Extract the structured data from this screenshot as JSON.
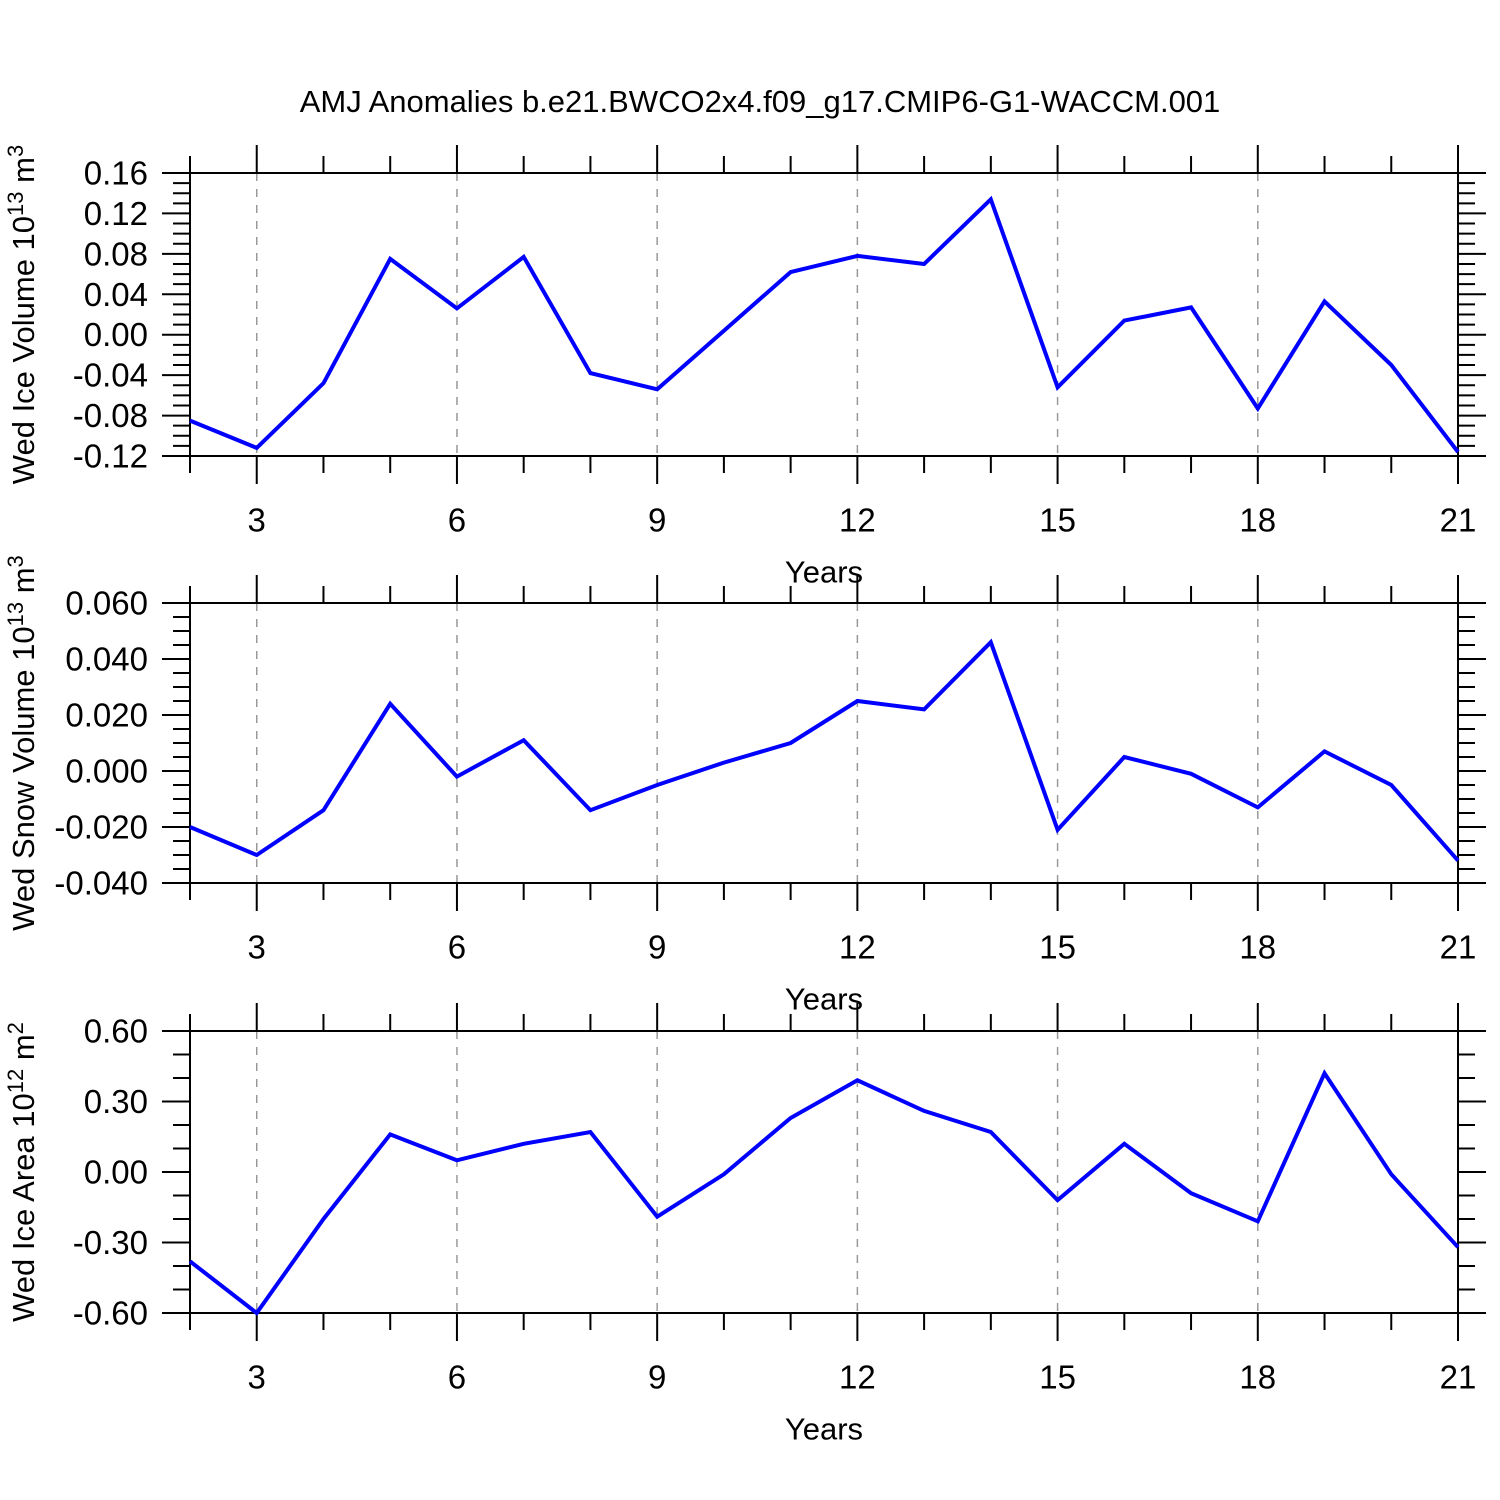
{
  "title": "AMJ Anomalies b.e21.BWCO2x4.f09_g17.CMIP6-G1-WACCM.001",
  "colors": {
    "line": "#0000ff",
    "grid": "#999999",
    "axis": "#000000"
  },
  "x_axis": {
    "label": "Years",
    "range": [
      2,
      21
    ],
    "years": [
      2,
      3,
      4,
      5,
      6,
      7,
      8,
      9,
      10,
      11,
      12,
      13,
      14,
      15,
      16,
      17,
      18,
      19,
      20,
      21
    ],
    "major_years": [
      3,
      6,
      9,
      12,
      15,
      18,
      21
    ],
    "tick_labels": [
      "3",
      "6",
      "9",
      "12",
      "15",
      "18",
      "21"
    ],
    "grid_years": [
      3,
      6,
      9,
      12,
      15,
      18
    ]
  },
  "chart_data": [
    {
      "type": "line",
      "name": "wed-ice-volume",
      "ylabel": "Wed Ice Volume 10^13 m^3",
      "ylabel_parts": [
        {
          "t": "Wed Ice Volume 10"
        },
        {
          "t": "13",
          "sup": true
        },
        {
          "t": " m"
        },
        {
          "t": "3",
          "sup": true
        }
      ],
      "xlabel": "Years",
      "ylim": [
        -0.12,
        0.16
      ],
      "ymajor_step": 0.04,
      "yminor_step": 0.01,
      "ytick_labels": [
        "0.16",
        "0.12",
        "0.08",
        "0.04",
        "0.00",
        "-0.04",
        "-0.08",
        "-0.12"
      ],
      "grid": "vertical-dashed",
      "x": [
        2,
        3,
        4,
        5,
        6,
        7,
        8,
        9,
        10,
        11,
        12,
        13,
        14,
        15,
        16,
        17,
        18,
        19,
        20,
        21
      ],
      "values": [
        -0.085,
        -0.112,
        -0.048,
        0.075,
        0.026,
        0.077,
        -0.038,
        -0.054,
        0.004,
        0.062,
        0.078,
        0.07,
        0.134,
        -0.052,
        0.014,
        0.027,
        -0.073,
        0.033,
        -0.03,
        -0.116
      ]
    },
    {
      "type": "line",
      "name": "wed-snow-volume",
      "ylabel": "Wed Snow Volume 10^13 m^3",
      "ylabel_parts": [
        {
          "t": "Wed Snow Volume 10"
        },
        {
          "t": "13",
          "sup": true
        },
        {
          "t": " m"
        },
        {
          "t": "3",
          "sup": true
        }
      ],
      "xlabel": "Years",
      "ylim": [
        -0.04,
        0.06
      ],
      "ymajor_step": 0.02,
      "yminor_step": 0.005,
      "ytick_labels": [
        "0.060",
        "0.040",
        "0.020",
        "0.000",
        "-0.020",
        "-0.040"
      ],
      "grid": "vertical-dashed",
      "x": [
        2,
        3,
        4,
        5,
        6,
        7,
        8,
        9,
        10,
        11,
        12,
        13,
        14,
        15,
        16,
        17,
        18,
        19,
        20,
        21
      ],
      "values": [
        -0.02,
        -0.03,
        -0.014,
        0.024,
        -0.002,
        0.011,
        -0.014,
        -0.005,
        0.003,
        0.01,
        0.025,
        0.022,
        0.046,
        -0.021,
        0.005,
        -0.001,
        -0.013,
        0.007,
        -0.005,
        -0.032
      ]
    },
    {
      "type": "line",
      "name": "wed-ice-area",
      "ylabel": "Wed Ice Area 10^12 m^2",
      "ylabel_parts": [
        {
          "t": "Wed Ice Area 10"
        },
        {
          "t": "12",
          "sup": true
        },
        {
          "t": " m"
        },
        {
          "t": "2",
          "sup": true
        }
      ],
      "xlabel": "Years",
      "ylim": [
        -0.6,
        0.6
      ],
      "ymajor_step": 0.3,
      "yminor_step": 0.1,
      "ytick_labels": [
        "0.60",
        "0.30",
        "0.00",
        "-0.30",
        "-0.60"
      ],
      "grid": "vertical-dashed",
      "x": [
        2,
        3,
        4,
        5,
        6,
        7,
        8,
        9,
        10,
        11,
        12,
        13,
        14,
        15,
        16,
        17,
        18,
        19,
        20,
        21
      ],
      "values": [
        -0.38,
        -0.6,
        -0.2,
        0.16,
        0.05,
        0.12,
        0.17,
        -0.19,
        -0.01,
        0.23,
        0.39,
        0.26,
        0.17,
        -0.12,
        0.12,
        -0.09,
        -0.21,
        0.42,
        -0.01,
        -0.32
      ]
    }
  ]
}
